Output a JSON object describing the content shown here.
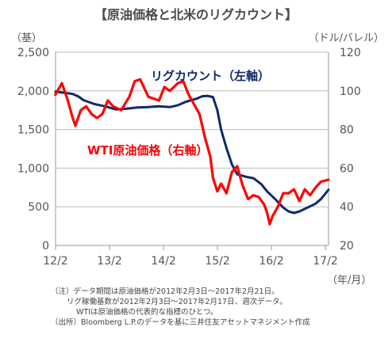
{
  "chart_data": {
    "type": "line",
    "title": "【原油価格と北米のリグカウント】",
    "left_axis": {
      "unit_label": "（基）",
      "ylim": [
        0,
        2500
      ],
      "ticks": [
        "0",
        "500",
        "1,000",
        "1,500",
        "2,000",
        "2,500"
      ],
      "tick_values": [
        0,
        500,
        1000,
        1500,
        2000,
        2500
      ]
    },
    "right_axis": {
      "unit_label": "（ドル/バレル）",
      "ylim": [
        20,
        120
      ],
      "ticks": [
        "20",
        "40",
        "60",
        "80",
        "100",
        "120"
      ],
      "tick_values": [
        20,
        40,
        60,
        80,
        100,
        120
      ]
    },
    "x_axis": {
      "ticks": [
        "12/2",
        "13/2",
        "14/2",
        "15/2",
        "16/2",
        "17/2"
      ],
      "tick_values": [
        2012.083,
        2013.083,
        2014.083,
        2015.083,
        2016.083,
        2017.083
      ],
      "range": [
        2012.083,
        2017.14
      ],
      "unit_label": "（年/月）"
    },
    "grid": true,
    "series": [
      {
        "name": "リグカウント（左軸）",
        "axis": "left",
        "color": "#0d2a6b",
        "x": [
          2012.08,
          2012.25,
          2012.4,
          2012.5,
          2012.6,
          2012.8,
          2013.0,
          2013.2,
          2013.4,
          2013.6,
          2013.8,
          2014.0,
          2014.2,
          2014.35,
          2014.5,
          2014.6,
          2014.7,
          2014.8,
          2014.9,
          2015.0,
          2015.08,
          2015.15,
          2015.25,
          2015.35,
          2015.45,
          2015.6,
          2015.75,
          2015.9,
          2016.0,
          2016.15,
          2016.3,
          2016.4,
          2016.5,
          2016.6,
          2016.75,
          2016.9,
          2017.0,
          2017.14
        ],
        "values": [
          1990,
          1975,
          1960,
          1930,
          1880,
          1830,
          1800,
          1760,
          1770,
          1785,
          1790,
          1800,
          1790,
          1815,
          1860,
          1880,
          1900,
          1930,
          1935,
          1920,
          1750,
          1500,
          1260,
          1050,
          920,
          890,
          870,
          790,
          700,
          600,
          490,
          440,
          420,
          440,
          490,
          540,
          600,
          720
        ]
      },
      {
        "name": "WTI原油価格（右軸）",
        "axis": "right",
        "color": "#ff0000",
        "x": [
          2012.08,
          2012.2,
          2012.3,
          2012.4,
          2012.45,
          2012.55,
          2012.65,
          2012.75,
          2012.85,
          2012.95,
          2013.05,
          2013.15,
          2013.3,
          2013.45,
          2013.55,
          2013.65,
          2013.8,
          2013.9,
          2014.0,
          2014.1,
          2014.2,
          2014.35,
          2014.45,
          2014.55,
          2014.65,
          2014.75,
          2014.85,
          2014.95,
          2015.0,
          2015.08,
          2015.15,
          2015.25,
          2015.35,
          2015.45,
          2015.55,
          2015.65,
          2015.75,
          2015.85,
          2015.95,
          2016.0,
          2016.05,
          2016.1,
          2016.2,
          2016.3,
          2016.4,
          2016.5,
          2016.6,
          2016.7,
          2016.8,
          2016.9,
          2017.0,
          2017.14
        ],
        "values": [
          98,
          104,
          96,
          86,
          82,
          90,
          92,
          88,
          86,
          88,
          95,
          92,
          90,
          97,
          105,
          106,
          97,
          96,
          95,
          102,
          100,
          104,
          105,
          98,
          93,
          88,
          76,
          66,
          55,
          48,
          52,
          47,
          58,
          61,
          51,
          44,
          46,
          45,
          41,
          37,
          31,
          35,
          40,
          47,
          47,
          49,
          43,
          49,
          46,
          50,
          53,
          54
        ]
      }
    ],
    "notes": [
      "（注）データ期間は原油価格が2012年2月3日～2017年2月21日。",
      "リグ稼働基数が2012年2月3日～2017年2月17日、週次データ。",
      "WTIは原油価格の代表的な指標のひとつ。",
      "（出所）Bloomberg L.P.のデータを基に三井住友アセットマネジメント作成"
    ]
  }
}
